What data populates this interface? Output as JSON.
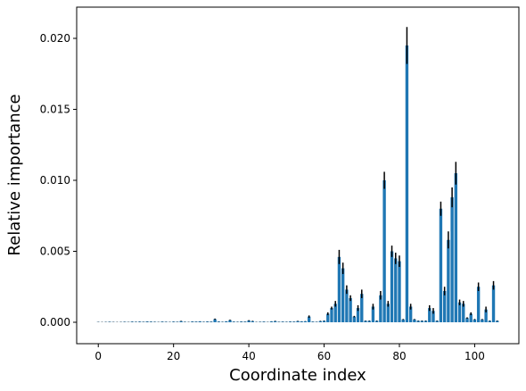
{
  "chart_data": {
    "type": "bar",
    "x_label": "Coordinate index",
    "y_label": "Relative importance",
    "x": [
      0,
      1,
      2,
      3,
      4,
      5,
      6,
      7,
      8,
      9,
      10,
      11,
      12,
      13,
      14,
      15,
      16,
      17,
      18,
      19,
      20,
      21,
      22,
      23,
      24,
      25,
      26,
      27,
      28,
      29,
      30,
      31,
      32,
      33,
      34,
      35,
      36,
      37,
      38,
      39,
      40,
      41,
      42,
      43,
      44,
      45,
      46,
      47,
      48,
      49,
      50,
      51,
      52,
      53,
      54,
      55,
      56,
      57,
      58,
      59,
      60,
      61,
      62,
      63,
      64,
      65,
      66,
      67,
      68,
      69,
      70,
      71,
      72,
      73,
      74,
      75,
      76,
      77,
      78,
      79,
      80,
      81,
      82,
      83,
      84,
      85,
      86,
      87,
      88,
      89,
      90,
      91,
      92,
      93,
      94,
      95,
      96,
      97,
      98,
      99,
      100,
      101,
      102,
      103,
      104,
      105,
      106
    ],
    "values": [
      2e-05,
      1e-05,
      2e-05,
      3e-05,
      2e-05,
      1e-05,
      2e-05,
      3e-05,
      2e-05,
      4e-05,
      3e-05,
      4e-05,
      3e-05,
      5e-05,
      4e-05,
      3e-05,
      2e-05,
      4e-05,
      3e-05,
      2e-05,
      4e-05,
      3e-05,
      8e-05,
      3e-05,
      2e-05,
      5e-05,
      4e-05,
      6e-05,
      3e-05,
      5e-05,
      4e-05,
      0.00022,
      5e-05,
      3e-05,
      6e-05,
      0.00015,
      4e-05,
      3e-05,
      5e-05,
      4e-05,
      0.00012,
      8e-05,
      2e-05,
      3e-05,
      4e-05,
      2e-05,
      6e-05,
      8e-05,
      3e-05,
      4e-05,
      3e-05,
      5e-05,
      4e-05,
      8e-05,
      6e-05,
      7e-05,
      0.0004,
      4e-05,
      3e-05,
      8e-05,
      0.0001,
      0.0006,
      0.001,
      0.0013,
      0.0046,
      0.0038,
      0.0023,
      0.0017,
      0.0004,
      0.001,
      0.002,
      0.0001,
      0.0001,
      0.0011,
      0.0001,
      0.0019,
      0.01,
      0.0013,
      0.005,
      0.0045,
      0.0043,
      0.0002,
      0.0195,
      0.0011,
      0.0002,
      0.0001,
      0.0001,
      0.0001,
      0.001,
      0.0008,
      0.0001,
      0.008,
      0.0022,
      0.0058,
      0.0088,
      0.0105,
      0.0014,
      0.0013,
      0.0003,
      0.0006,
      0.0002,
      0.0025,
      0.0002,
      0.0009,
      0.0001,
      0.0026,
      0.0001
    ],
    "errors": [
      1e-05,
      1e-05,
      1e-05,
      1e-05,
      1e-05,
      1e-05,
      1e-05,
      1e-05,
      1e-05,
      1e-05,
      1e-05,
      1e-05,
      1e-05,
      1e-05,
      1e-05,
      1e-05,
      1e-05,
      1e-05,
      1e-05,
      1e-05,
      1e-05,
      1e-05,
      2e-05,
      1e-05,
      1e-05,
      1e-05,
      1e-05,
      1e-05,
      1e-05,
      1e-05,
      1e-05,
      4e-05,
      1e-05,
      1e-05,
      1e-05,
      3e-05,
      1e-05,
      1e-05,
      1e-05,
      1e-05,
      3e-05,
      2e-05,
      1e-05,
      1e-05,
      1e-05,
      1e-05,
      1e-05,
      2e-05,
      1e-05,
      1e-05,
      1e-05,
      1e-05,
      1e-05,
      2e-05,
      1e-05,
      1e-05,
      8e-05,
      1e-05,
      1e-05,
      2e-05,
      2e-05,
      0.0001,
      0.0001,
      0.0002,
      0.0005,
      0.0004,
      0.0003,
      0.0002,
      5e-05,
      0.0002,
      0.0003,
      2e-05,
      2e-05,
      0.0002,
      2e-05,
      0.0003,
      0.0006,
      0.0002,
      0.0004,
      0.0004,
      0.0004,
      3e-05,
      0.0013,
      0.0002,
      3e-05,
      2e-05,
      2e-05,
      2e-05,
      0.0002,
      0.0002,
      2e-05,
      0.0005,
      0.0003,
      0.0006,
      0.0007,
      0.0008,
      0.0002,
      0.0002,
      5e-05,
      0.0001,
      3e-05,
      0.0003,
      3e-05,
      0.0002,
      2e-05,
      0.0003,
      2e-05
    ],
    "color": "#1f77b4",
    "error_color": "#000000",
    "xlim": [
      -5.74,
      111.74
    ],
    "xticks": [
      0,
      20,
      40,
      60,
      80,
      100
    ],
    "ylim": [
      -0.00151,
      0.0222
    ],
    "yticks": [
      {
        "value": 0,
        "label": "0.000"
      },
      {
        "value": 0.005,
        "label": "0.005"
      },
      {
        "value": 0.01,
        "label": "0.010"
      },
      {
        "value": 0.015,
        "label": "0.015"
      },
      {
        "value": 0.02,
        "label": "0.020"
      }
    ],
    "grid": false
  }
}
